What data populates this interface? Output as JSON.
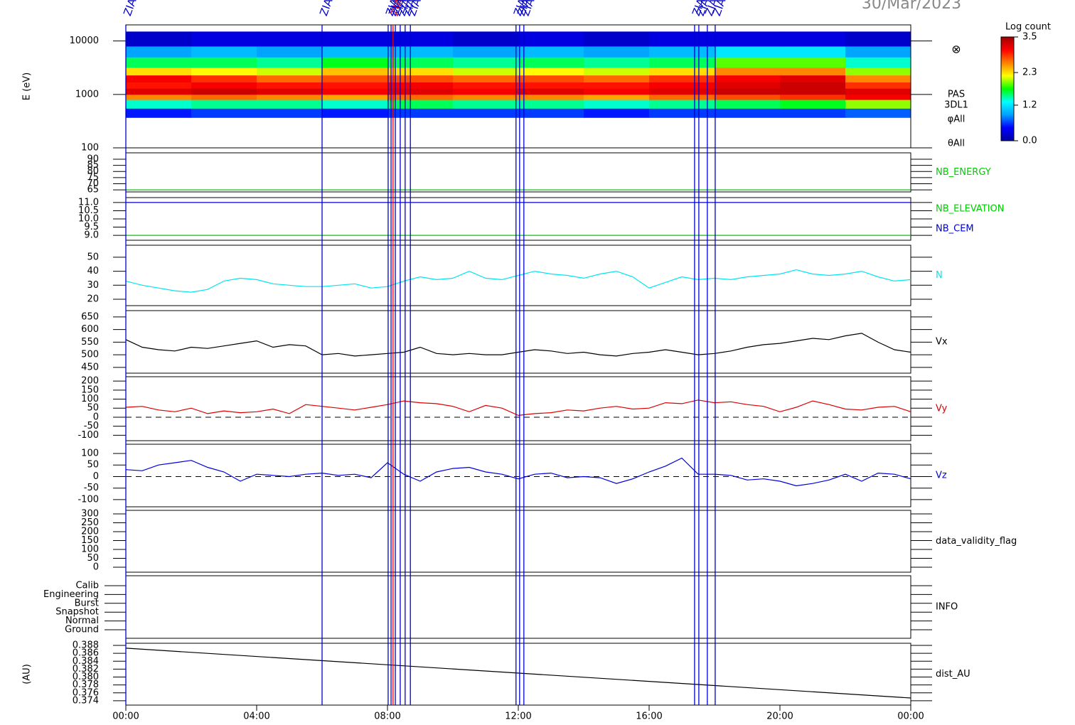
{
  "date": "30/Mar/2023",
  "events": [
    {
      "x": 0,
      "color": "#0000cc",
      "label": "ZIAS"
    },
    {
      "x": 6.0,
      "color": "#0000cc",
      "label": "ZIAS"
    },
    {
      "x": 8.02,
      "color": "#0000cc",
      "label": "ZIAS"
    },
    {
      "x": 8.11,
      "color": "#0000cc",
      "label": "ZIAS"
    },
    {
      "x": 8.17,
      "color": "#dd0000",
      "label": "ZIAS"
    },
    {
      "x": 8.24,
      "color": "#0000cc",
      "label": "ZIAS"
    },
    {
      "x": 8.39,
      "color": "#0000cc",
      "label": "ZIAS"
    },
    {
      "x": 8.54,
      "color": "#0000cc",
      "label": "ZIAS"
    },
    {
      "x": 8.7,
      "color": "#0000cc",
      "label": "ZIAS"
    },
    {
      "x": 11.93,
      "color": "#0000cc",
      "label": "ZIAS"
    },
    {
      "x": 12.04,
      "color": "#0000cc",
      "label": "ZIAS"
    },
    {
      "x": 12.17,
      "color": "#0000cc",
      "label": "ZIAS"
    },
    {
      "x": 17.39,
      "color": "#0000cc",
      "label": "ZIAS"
    },
    {
      "x": 17.52,
      "color": "#0000cc",
      "label": "ZIAS"
    },
    {
      "x": 17.78,
      "color": "#0000cc",
      "label": "ZIAS"
    },
    {
      "x": 18.02,
      "color": "#0000cc",
      "label": "ZIAS"
    }
  ],
  "chart_data": [
    {
      "type": "heatmap",
      "ylabel": "E (eV)",
      "log_y": true,
      "ylim": [
        100,
        20000
      ],
      "yticks": [
        100,
        1000,
        10000
      ],
      "xlim": [
        0,
        24
      ],
      "x_bins": [
        0,
        2,
        4,
        6,
        8,
        10,
        12,
        14,
        16,
        18,
        20,
        22,
        24
      ],
      "y_bins": [
        370,
        550,
        800,
        1000,
        1300,
        1700,
        2300,
        3200,
        5000,
        8000,
        15000
      ],
      "z": [
        [
          0.5,
          0.6,
          0.6,
          0.5,
          0.6,
          0.6,
          0.6,
          0.5,
          0.6,
          0.6,
          0.6,
          0.7
        ],
        [
          1.4,
          1.5,
          1.5,
          1.4,
          1.6,
          1.5,
          1.5,
          1.4,
          1.5,
          1.6,
          1.7,
          2.0
        ],
        [
          2.6,
          2.7,
          2.6,
          2.5,
          2.7,
          2.6,
          2.6,
          2.5,
          2.7,
          2.8,
          2.9,
          3.1
        ],
        [
          3.2,
          3.3,
          3.2,
          3.1,
          3.2,
          3.1,
          3.2,
          3.1,
          3.2,
          3.3,
          3.3,
          3.2
        ],
        [
          3.0,
          3.1,
          3.0,
          3.0,
          3.1,
          3.0,
          3.0,
          3.0,
          3.1,
          3.2,
          3.3,
          2.9
        ],
        [
          3.1,
          2.9,
          2.7,
          2.8,
          2.8,
          2.7,
          2.8,
          2.7,
          2.9,
          3.1,
          3.2,
          2.6
        ],
        [
          2.3,
          2.2,
          2.1,
          2.4,
          2.3,
          2.1,
          2.2,
          2.1,
          2.3,
          2.6,
          2.6,
          2.0
        ],
        [
          1.6,
          1.6,
          1.5,
          1.7,
          1.6,
          1.5,
          1.6,
          1.5,
          1.6,
          1.9,
          1.9,
          1.4
        ],
        [
          0.9,
          1.0,
          0.9,
          1.0,
          1.0,
          0.9,
          1.0,
          0.9,
          1.0,
          1.2,
          1.2,
          0.9
        ],
        [
          0.2,
          0.3,
          0.3,
          0.3,
          0.3,
          0.2,
          0.3,
          0.2,
          0.3,
          0.3,
          0.3,
          0.2
        ]
      ],
      "colorbar": {
        "title": "Log count",
        "clim": [
          0,
          3.5
        ],
        "ticks": [
          {
            "value": 0,
            "label": "0.0"
          },
          1.2,
          2.3,
          3.5
        ],
        "colors": [
          "#0000a0",
          "#0000ff",
          "#00a0ff",
          "#00ffff",
          "#00ff00",
          "#ffff00",
          "#ff8000",
          "#ff0000",
          "#a00000"
        ]
      },
      "side_labels": [
        "PAS",
        "3DL1",
        "φAll",
        "θAll"
      ],
      "symbol": "⊗"
    },
    {
      "type": "line",
      "ylim": [
        63.3,
        95.2
      ],
      "yticks": [
        90,
        85,
        80,
        75,
        70,
        65
      ],
      "xlim": [
        0,
        24
      ],
      "x": [
        0,
        24
      ],
      "series": [
        {
          "name": "NB_ENERGY",
          "color": "#00cc00",
          "values": [
            65,
            65
          ]
        }
      ]
    },
    {
      "type": "line",
      "ylim": [
        8.7,
        11.3
      ],
      "yticks": [
        {
          "value": 11,
          "label": "11.0"
        },
        10.5,
        {
          "value": 10,
          "label": "10.0"
        },
        9.5,
        {
          "value": 9,
          "label": "9.0"
        }
      ],
      "xlim": [
        0,
        24
      ],
      "x": [
        0,
        24
      ],
      "series": [
        {
          "name": "NB_ELEVATION",
          "color": "#00cc00",
          "values": [
            9,
            9
          ]
        },
        {
          "name": "NB_CEM",
          "color": "#0000cc",
          "values": [
            11,
            11
          ]
        }
      ]
    },
    {
      "type": "line",
      "ylim": [
        15.4,
        58.6
      ],
      "yticks": [
        50,
        40,
        30,
        20
      ],
      "xlim": [
        0,
        24
      ],
      "x": [
        0,
        0.5,
        1,
        1.5,
        2,
        2.5,
        3,
        3.5,
        4,
        4.5,
        5,
        5.5,
        6,
        6.5,
        7,
        7.5,
        8,
        8.5,
        9,
        9.5,
        10,
        10.5,
        11,
        11.5,
        12,
        12.5,
        13,
        13.5,
        14,
        14.5,
        15,
        15.5,
        16,
        16.5,
        17,
        17.5,
        18,
        18.5,
        19,
        19.5,
        20,
        20.5,
        21,
        21.5,
        22,
        22.5,
        23,
        23.5,
        24
      ],
      "series": [
        {
          "name": "N",
          "color": "#00e5ee",
          "values": [
            33,
            30,
            28,
            26,
            25,
            27,
            33,
            35,
            34,
            31,
            30,
            29,
            29,
            30,
            31,
            28,
            29,
            33,
            36,
            34,
            35,
            40,
            35,
            34,
            37,
            40,
            38,
            37,
            35,
            38,
            40,
            36,
            28,
            32,
            36,
            34,
            35,
            34,
            36,
            37,
            38,
            41,
            38,
            37,
            38,
            40,
            36,
            33,
            34
          ]
        }
      ]
    },
    {
      "type": "line",
      "ylim": [
        427,
        675
      ],
      "yticks": [
        650,
        600,
        550,
        500,
        450
      ],
      "xlim": [
        0,
        24
      ],
      "x": [
        0,
        0.5,
        1,
        1.5,
        2,
        2.5,
        3,
        3.5,
        4,
        4.5,
        5,
        5.5,
        6,
        6.5,
        7,
        7.5,
        8,
        8.5,
        9,
        9.5,
        10,
        10.5,
        11,
        11.5,
        12,
        12.5,
        13,
        13.5,
        14,
        14.5,
        15,
        15.5,
        16,
        16.5,
        17,
        17.5,
        18,
        18.5,
        19,
        19.5,
        20,
        20.5,
        21,
        21.5,
        22,
        22.5,
        23,
        23.5,
        24
      ],
      "series": [
        {
          "name": "Vx",
          "color": "#000000",
          "values": [
            560,
            530,
            520,
            515,
            530,
            525,
            535,
            545,
            555,
            530,
            540,
            535,
            500,
            505,
            495,
            500,
            505,
            510,
            530,
            505,
            500,
            505,
            500,
            500,
            510,
            520,
            515,
            505,
            510,
            500,
            495,
            505,
            510,
            520,
            510,
            500,
            505,
            515,
            530,
            540,
            545,
            555,
            565,
            560,
            575,
            585,
            550,
            520,
            510
          ]
        }
      ]
    },
    {
      "type": "line",
      "zero_line": true,
      "ylim": [
        -130,
        224
      ],
      "yticks": [
        200,
        150,
        100,
        50,
        0,
        -50,
        -100
      ],
      "xlim": [
        0,
        24
      ],
      "x": [
        0,
        0.5,
        1,
        1.5,
        2,
        2.5,
        3,
        3.5,
        4,
        4.5,
        5,
        5.5,
        6,
        6.5,
        7,
        7.5,
        8,
        8.5,
        9,
        9.5,
        10,
        10.5,
        11,
        11.5,
        12,
        12.5,
        13,
        13.5,
        14,
        14.5,
        15,
        15.5,
        16,
        16.5,
        17,
        17.5,
        18,
        18.5,
        19,
        19.5,
        20,
        20.5,
        21,
        21.5,
        22,
        22.5,
        23,
        23.5,
        24
      ],
      "series": [
        {
          "name": "Vy",
          "color": "#dd0000",
          "values": [
            55,
            60,
            40,
            30,
            50,
            20,
            35,
            25,
            30,
            45,
            20,
            70,
            60,
            50,
            40,
            55,
            70,
            90,
            80,
            75,
            60,
            30,
            65,
            50,
            10,
            20,
            25,
            40,
            35,
            50,
            60,
            45,
            50,
            80,
            75,
            95,
            80,
            85,
            70,
            60,
            30,
            55,
            90,
            70,
            45,
            40,
            55,
            60,
            30
          ]
        }
      ]
    },
    {
      "type": "line",
      "zero_line": true,
      "ylim": [
        -131,
        140
      ],
      "yticks": [
        100,
        50,
        0,
        -50,
        -100
      ],
      "xlim": [
        0,
        24
      ],
      "x": [
        0,
        0.5,
        1,
        1.5,
        2,
        2.5,
        3,
        3.5,
        4,
        4.5,
        5,
        5.5,
        6,
        6.5,
        7,
        7.5,
        8,
        8.5,
        9,
        9.5,
        10,
        10.5,
        11,
        11.5,
        12,
        12.5,
        13,
        13.5,
        14,
        14.5,
        15,
        15.5,
        16,
        16.5,
        17,
        17.5,
        18,
        18.5,
        19,
        19.5,
        20,
        20.5,
        21,
        21.5,
        22,
        22.5,
        23,
        23.5,
        24
      ],
      "series": [
        {
          "name": "Vz",
          "color": "#0000dd",
          "values": [
            30,
            25,
            50,
            60,
            70,
            40,
            20,
            -20,
            10,
            5,
            0,
            10,
            15,
            5,
            10,
            -5,
            60,
            10,
            -20,
            20,
            35,
            40,
            20,
            10,
            -10,
            10,
            15,
            -5,
            0,
            -5,
            -30,
            -10,
            20,
            45,
            80,
            10,
            10,
            5,
            -15,
            -10,
            -20,
            -40,
            -30,
            -15,
            10,
            -20,
            15,
            10,
            -10
          ]
        }
      ]
    },
    {
      "type": "empty",
      "label": "data_validity_flag",
      "ylim": [
        -28,
        320
      ],
      "yticks": [
        300,
        250,
        200,
        150,
        100,
        50,
        0
      ],
      "xlim": [
        0,
        24
      ]
    },
    {
      "type": "category",
      "label": "INFO",
      "categories": [
        "Calib",
        "Engineering",
        "Burst",
        "Snapshot",
        "Normal",
        "Ground"
      ],
      "xlim": [
        0,
        24
      ]
    },
    {
      "type": "line",
      "ylabel": "(AU)",
      "ylim": [
        0.3729,
        0.38854
      ],
      "yticks": [
        0.388,
        0.386,
        0.384,
        0.382,
        {
          "value": 0.38,
          "label": "0.380"
        },
        0.378,
        0.376,
        0.374
      ],
      "xlim": [
        0,
        24
      ],
      "xticks": [
        {
          "value": 0,
          "label": "00:00"
        },
        {
          "value": 4,
          "label": "04:00"
        },
        {
          "value": 8,
          "label": "08:00"
        },
        {
          "value": 12,
          "label": "12:00"
        },
        {
          "value": 16,
          "label": "16:00"
        },
        {
          "value": 20,
          "label": "20:00"
        },
        {
          "value": 24,
          "label": "00:00"
        }
      ],
      "x": [
        0,
        24
      ],
      "series": [
        {
          "name": "dist_AU",
          "color": "#000000",
          "values": [
            0.3873,
            0.3747
          ]
        }
      ]
    }
  ]
}
